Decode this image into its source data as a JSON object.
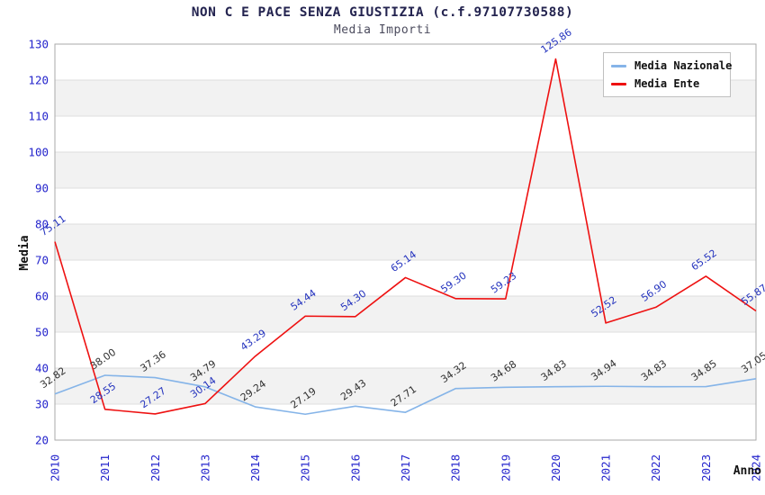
{
  "chart_data": {
    "type": "line",
    "title": "NON C E PACE SENZA GIUSTIZIA (c.f.97107730588)",
    "subtitle": "Media Importi",
    "xlabel": "Anno",
    "ylabel": "Media",
    "x": [
      "2010",
      "2011",
      "2012",
      "2013",
      "2014",
      "2015",
      "2016",
      "2017",
      "2018",
      "2019",
      "2020",
      "2021",
      "2022",
      "2023",
      "2024"
    ],
    "series": [
      {
        "name": "Media Nazionale",
        "color": "#85b4e8",
        "label_color": "#303030",
        "values": [
          32.82,
          38.0,
          37.36,
          34.79,
          29.24,
          27.19,
          29.43,
          27.71,
          34.32,
          34.68,
          34.83,
          34.94,
          34.83,
          34.85,
          37.05
        ]
      },
      {
        "name": "Media Ente",
        "color": "#ee1111",
        "label_color": "#2433be",
        "values": [
          75.11,
          28.55,
          27.27,
          30.14,
          43.29,
          54.44,
          54.3,
          65.14,
          59.3,
          59.23,
          125.86,
          52.52,
          56.9,
          65.52,
          55.87
        ]
      }
    ],
    "ylim": [
      20,
      130
    ],
    "ytick_step": 10,
    "grid": "horizontal",
    "background_bands": "alternating",
    "legend_position": "top-right",
    "label_decimals": 2,
    "colors": {
      "band": "#f2f2f2",
      "gridline": "#dddddd",
      "plot_border": "#aaaaaa",
      "tick_labels": "#2424cc",
      "title": "#23234f",
      "subtitle": "#4c4c5e",
      "axis_titles": "#111111",
      "legend_border": "#c0c0c0",
      "legend_bg": "#ffffff",
      "legend_text": "#111111"
    }
  }
}
